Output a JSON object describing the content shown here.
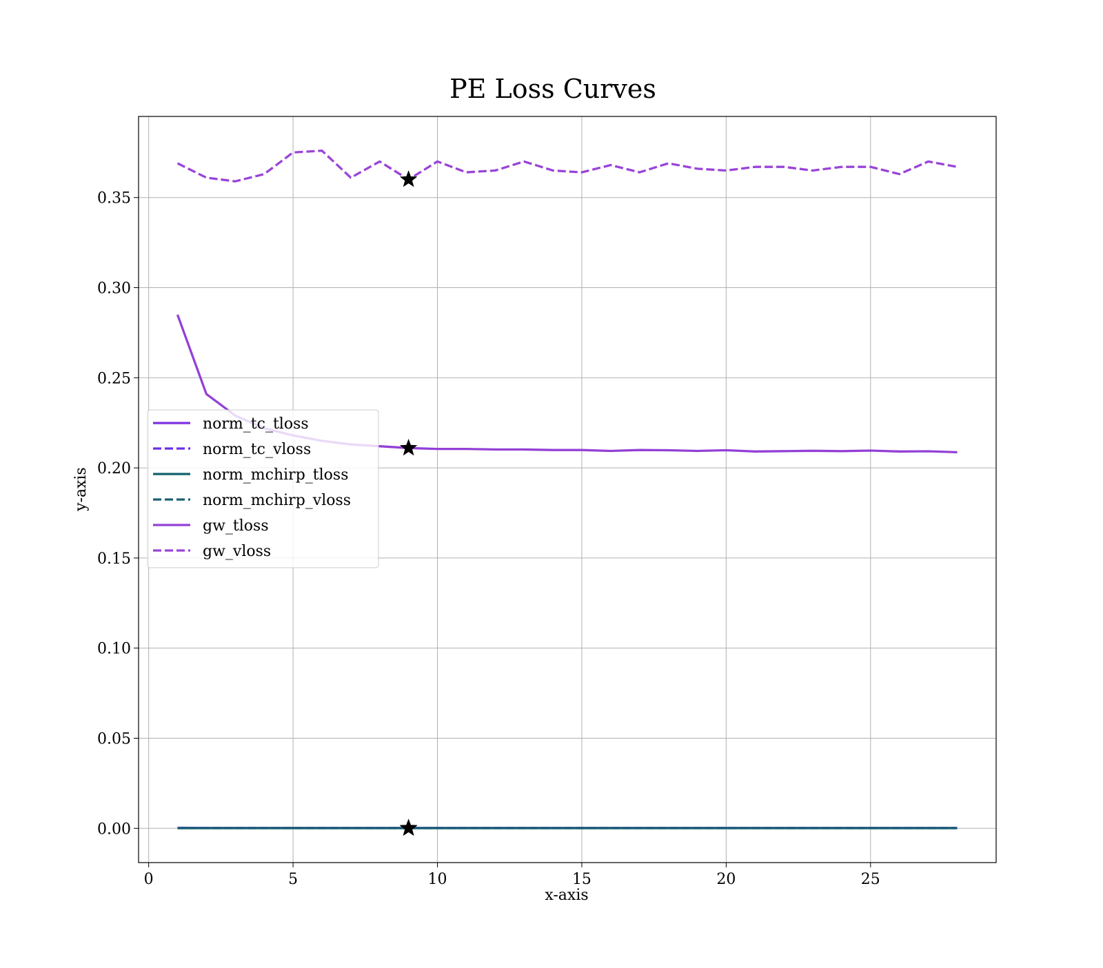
{
  "chart_data": {
    "type": "line",
    "title": "PE Loss Curves",
    "xlabel": "x-axis",
    "ylabel": "y-axis",
    "xlim": [
      -0.35,
      29.35
    ],
    "ylim": [
      -0.019,
      0.395
    ],
    "xticks": [
      0,
      5,
      10,
      15,
      20,
      25
    ],
    "xtick_labels": [
      "0",
      "5",
      "10",
      "15",
      "20",
      "25"
    ],
    "yticks": [
      0.0,
      0.05,
      0.1,
      0.15,
      0.2,
      0.25,
      0.3,
      0.35
    ],
    "ytick_labels": [
      "0.00",
      "0.05",
      "0.10",
      "0.15",
      "0.20",
      "0.25",
      "0.30",
      "0.35"
    ],
    "grid": true,
    "legend_position": "center-left",
    "x": [
      1,
      2,
      3,
      4,
      5,
      6,
      7,
      8,
      9,
      10,
      11,
      12,
      13,
      14,
      15,
      16,
      17,
      18,
      19,
      20,
      21,
      22,
      23,
      24,
      25,
      26,
      27,
      28
    ],
    "series": [
      {
        "name": "norm_tc_tloss",
        "color": "#7b2fe0",
        "dash": "solid",
        "values": [
          0.0003,
          0.0002,
          0.0002,
          0.0002,
          0.0002,
          0.0002,
          0.0002,
          0.0002,
          0.0002,
          0.0002,
          0.0002,
          0.0002,
          0.0002,
          0.0002,
          0.0002,
          0.0002,
          0.0002,
          0.0002,
          0.0002,
          0.0002,
          0.0002,
          0.0002,
          0.0002,
          0.0002,
          0.0002,
          0.0002,
          0.0002,
          0.0002
        ]
      },
      {
        "name": "norm_tc_vloss",
        "color": "#6a2ee8",
        "dash": "dashed",
        "values": [
          0.0002,
          0.0002,
          0.0002,
          0.0002,
          0.0002,
          0.0002,
          0.0002,
          0.0002,
          0.0002,
          0.0002,
          0.0002,
          0.0002,
          0.0002,
          0.0002,
          0.0002,
          0.0002,
          0.0002,
          0.0002,
          0.0002,
          0.0002,
          0.0002,
          0.0002,
          0.0002,
          0.0002,
          0.0002,
          0.0002,
          0.0002,
          0.0002
        ]
      },
      {
        "name": "norm_mchirp_tloss",
        "color": "#10626b",
        "dash": "solid",
        "values": [
          0.0001,
          0.0001,
          0.0001,
          0.0001,
          0.0001,
          0.0001,
          0.0001,
          0.0001,
          0.0001,
          0.0001,
          0.0001,
          0.0001,
          0.0001,
          0.0001,
          0.0001,
          0.0001,
          0.0001,
          0.0001,
          0.0001,
          0.0001,
          0.0001,
          0.0001,
          0.0001,
          0.0001,
          0.0001,
          0.0001,
          0.0001,
          0.0001
        ]
      },
      {
        "name": "norm_mchirp_vloss",
        "color": "#1a5f76",
        "dash": "dashed",
        "values": [
          0.0001,
          0.0001,
          0.0001,
          0.0001,
          0.0001,
          0.0001,
          0.0001,
          0.0001,
          0.0001,
          0.0001,
          0.0001,
          0.0001,
          0.0001,
          0.0001,
          0.0001,
          0.0001,
          0.0001,
          0.0001,
          0.0001,
          0.0001,
          0.0001,
          0.0001,
          0.0001,
          0.0001,
          0.0001,
          0.0001,
          0.0001,
          0.0001
        ]
      },
      {
        "name": "gw_tloss",
        "color": "#9340d6",
        "dash": "solid",
        "values": [
          0.285,
          0.241,
          0.229,
          0.222,
          0.218,
          0.215,
          0.213,
          0.212,
          0.211,
          0.2105,
          0.2105,
          0.2102,
          0.2102,
          0.2099,
          0.2099,
          0.2094,
          0.2099,
          0.2098,
          0.2094,
          0.2098,
          0.2091,
          0.2093,
          0.2095,
          0.2093,
          0.2096,
          0.2091,
          0.2092,
          0.2087
        ]
      },
      {
        "name": "gw_vloss",
        "color": "#9a43d8",
        "dash": "dashed",
        "values": [
          0.369,
          0.361,
          0.359,
          0.363,
          0.375,
          0.376,
          0.361,
          0.37,
          0.36,
          0.37,
          0.364,
          0.365,
          0.37,
          0.365,
          0.364,
          0.368,
          0.364,
          0.369,
          0.366,
          0.365,
          0.367,
          0.367,
          0.365,
          0.367,
          0.367,
          0.363,
          0.37,
          0.367
        ]
      }
    ],
    "best_markers": [
      {
        "x": 9,
        "y": 0.36,
        "marker": "star"
      },
      {
        "x": 9,
        "y": 0.211,
        "marker": "star"
      },
      {
        "x": 9,
        "y": 0.0002,
        "marker": "star"
      },
      {
        "x": 9,
        "y": 0.0,
        "marker": "star"
      }
    ]
  }
}
